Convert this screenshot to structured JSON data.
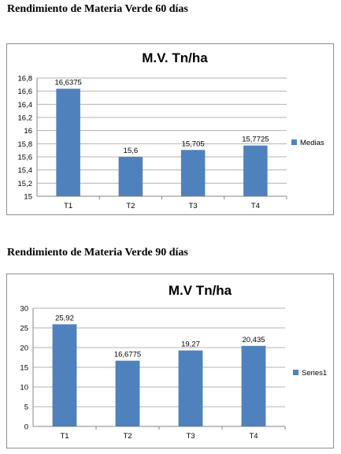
{
  "headings": {
    "first": "Rendimiento de Materia Verde 60 días",
    "second": "Rendimiento de Materia Verde 90 días"
  },
  "colors": {
    "bar": "#4f81bd",
    "grid": "#b3b3b3",
    "axis": "#868686"
  },
  "chart_data": [
    {
      "type": "bar",
      "title": "M.V. Tn/ha",
      "categories": [
        "T1",
        "T2",
        "T3",
        "T4"
      ],
      "series": [
        {
          "name": "Medias",
          "values": [
            16.6375,
            15.6,
            15.705,
            15.7725
          ]
        }
      ],
      "data_labels": [
        "16,6375",
        "15,6",
        "15,705",
        "15,7725"
      ],
      "ylim": [
        15,
        16.8
      ],
      "yticks": [
        15,
        15.2,
        15.4,
        15.6,
        15.8,
        16,
        16.2,
        16.4,
        16.6,
        16.8
      ],
      "ytick_labels": [
        "15",
        "15,2",
        "15,4",
        "15,6",
        "15,8",
        "16",
        "16,2",
        "16,4",
        "16,6",
        "16,8"
      ],
      "xlabel": "",
      "ylabel": "",
      "grid": true,
      "legend": "right"
    },
    {
      "type": "bar",
      "title": "M.V Tn/ha",
      "categories": [
        "T1",
        "T2",
        "T3",
        "T4"
      ],
      "series": [
        {
          "name": "Series1",
          "values": [
            25.92,
            16.6775,
            19.27,
            20.435
          ]
        }
      ],
      "data_labels": [
        "25,92",
        "16,6775",
        "19,27",
        "20,435"
      ],
      "ylim": [
        0,
        30
      ],
      "yticks": [
        0,
        5,
        10,
        15,
        20,
        25,
        30
      ],
      "ytick_labels": [
        "0",
        "5",
        "10",
        "15",
        "20",
        "25",
        "30"
      ],
      "xlabel": "",
      "ylabel": "",
      "grid": true,
      "legend": "right"
    }
  ]
}
